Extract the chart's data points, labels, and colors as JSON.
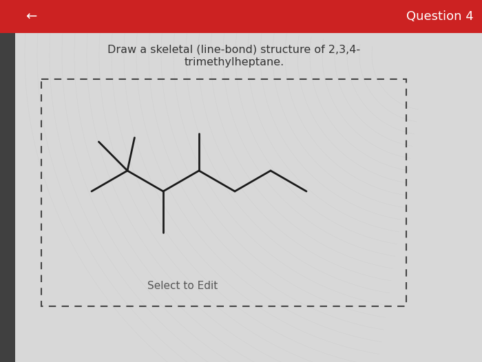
{
  "title_line1": "Draw a skeletal (line-bond) structure of 2,3,4-",
  "title_line2": "trimethylheptane.",
  "select_to_edit": "Select to Edit",
  "question_label": "Question 4",
  "bg_color": "#d8d8d8",
  "header_color": "#cc2222",
  "line_color": "#1a1a1a",
  "line_width": 2.0,
  "figsize": [
    7.0,
    5.26
  ],
  "dpi": 100,
  "left_strip_color": "#404040",
  "box_edge_color": "#444444",
  "text_color": "#333333"
}
